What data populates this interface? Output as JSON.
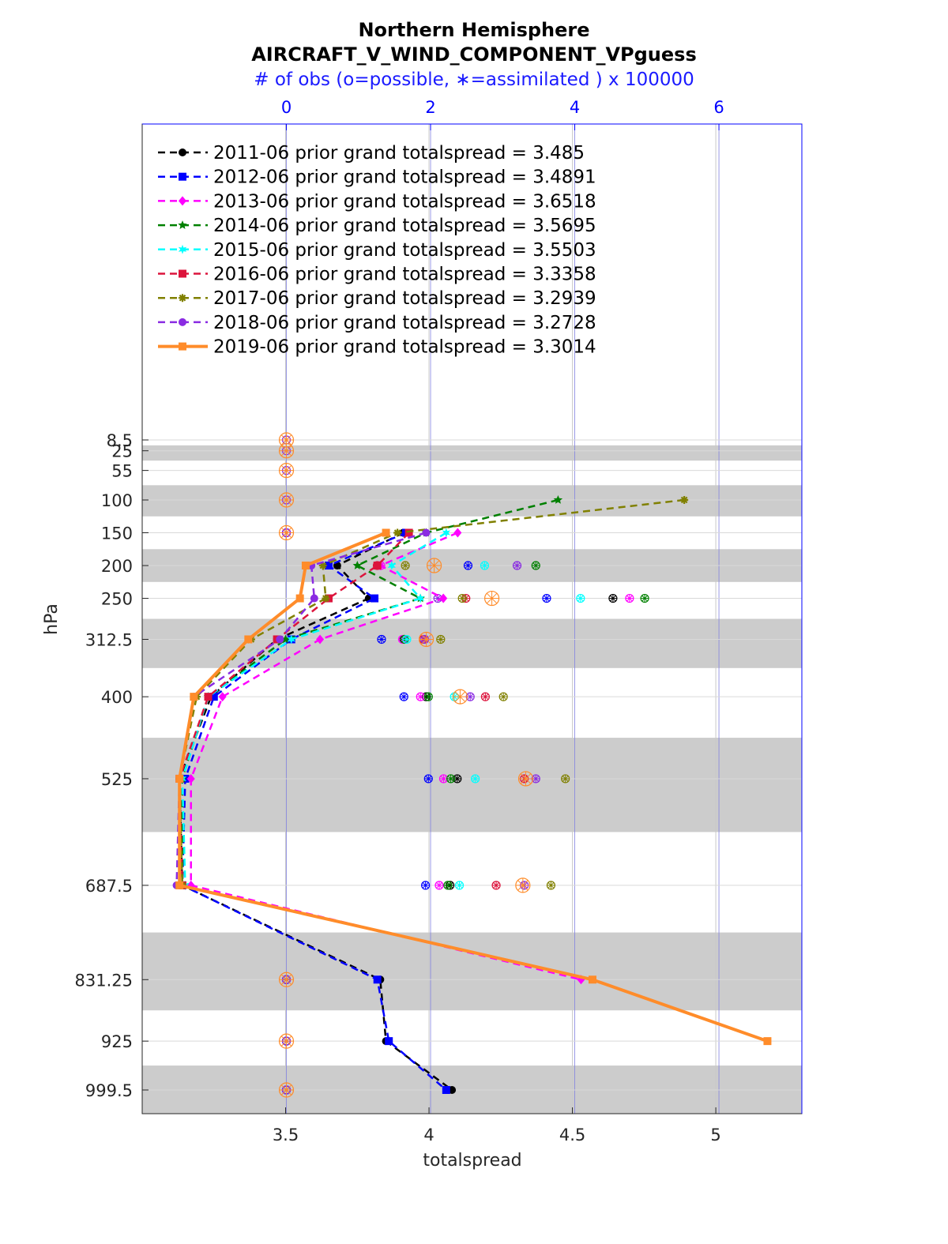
{
  "chart_data": {
    "type": "line",
    "title_line1": "Northern Hemisphere",
    "title_line2": "AIRCRAFT_V_WIND_COMPONENT_VPguess",
    "top_axis_label": "# of obs (o=possible, ∗=assimilated ) x 100000",
    "xlabel": "totalspread",
    "ylabel": "hPa",
    "xlim": [
      3.0,
      5.3
    ],
    "x_ticks": [
      "3.5",
      "4",
      "4.5",
      "5"
    ],
    "x_tick_values": [
      3.5,
      4,
      4.5,
      5
    ],
    "top_xlim": [
      -2,
      7.15
    ],
    "top_ticks": [
      "0",
      "2",
      "4",
      "6"
    ],
    "top_tick_values": [
      0,
      2,
      4,
      6
    ],
    "y_levels": [
      8.5,
      25,
      55,
      100,
      150,
      200,
      250,
      312.5,
      400,
      525,
      687.5,
      831.25,
      925,
      999.5
    ],
    "y_tick_labels": [
      "8.5",
      "25",
      "55",
      "100",
      "150",
      "200",
      "250",
      "312.5",
      "400",
      "525",
      "687.5",
      "831.25",
      "925",
      "999.5"
    ],
    "grid": true,
    "legend_position": "top-left",
    "series": [
      {
        "name": "2011-06 prior grand totalspread = 3.485",
        "color": "#000000",
        "marker": "circle",
        "style": "dashed",
        "x": [
          null,
          null,
          null,
          null,
          3.91,
          3.68,
          3.79,
          3.47,
          3.24,
          3.13,
          3.14,
          3.83,
          3.85,
          4.08
        ],
        "possible": [
          null,
          null,
          null,
          null,
          0.0,
          null,
          4.53,
          1.63,
          1.94,
          2.37,
          2.27,
          0,
          0,
          0
        ],
        "assimilated": [
          null,
          null,
          null,
          null,
          0.0,
          null,
          4.53,
          1.63,
          1.94,
          2.37,
          2.27,
          0,
          0,
          0
        ]
      },
      {
        "name": "2012-06 prior grand totalspread = 3.4891",
        "color": "#0000ff",
        "marker": "square",
        "style": "dashed",
        "x": [
          null,
          null,
          null,
          null,
          3.92,
          3.65,
          3.81,
          3.52,
          3.25,
          3.15,
          3.14,
          3.82,
          3.86,
          4.06
        ],
        "possible": [
          null,
          null,
          null,
          null,
          0.0,
          2.52,
          3.61,
          1.32,
          1.63,
          1.97,
          1.93,
          0,
          0,
          0
        ],
        "assimilated": [
          null,
          null,
          null,
          null,
          0.0,
          2.52,
          3.61,
          1.32,
          1.63,
          1.97,
          1.93,
          0,
          0,
          0
        ]
      },
      {
        "name": "2013-06 prior grand totalspread = 3.6518",
        "color": "#ff00ff",
        "marker": "diamond",
        "style": "dashed",
        "x": [
          null,
          null,
          null,
          null,
          4.1,
          3.83,
          4.05,
          3.62,
          3.28,
          3.17,
          3.17,
          4.53,
          null,
          null
        ],
        "possible": [
          null,
          null,
          null,
          null,
          0.0,
          1.31,
          4.76,
          1.61,
          1.86,
          2.18,
          2.12,
          null,
          null,
          null
        ],
        "assimilated": [
          null,
          null,
          null,
          null,
          0.0,
          1.31,
          4.76,
          1.61,
          1.86,
          2.18,
          2.12,
          null,
          null,
          null
        ]
      },
      {
        "name": "2014-06 prior grand totalspread = 3.5695",
        "color": "#008000",
        "marker": "pentagram",
        "style": "dashed",
        "x": [
          null,
          null,
          null,
          4.45,
          3.99,
          3.75,
          3.97,
          3.5,
          3.23,
          3.14,
          3.14,
          null,
          null,
          null
        ],
        "possible": [
          null,
          null,
          null,
          null,
          null,
          3.46,
          4.97,
          1.64,
          1.97,
          2.28,
          2.24,
          null,
          null,
          null
        ],
        "assimilated": [
          null,
          null,
          null,
          null,
          null,
          3.46,
          4.97,
          1.64,
          1.97,
          2.28,
          2.24,
          null,
          null,
          null
        ]
      },
      {
        "name": "2015-06 prior grand totalspread = 3.5503",
        "color": "#00ffff",
        "marker": "hexagram",
        "style": "dashed",
        "x": [
          null,
          null,
          null,
          null,
          4.06,
          3.87,
          3.97,
          3.52,
          3.23,
          3.14,
          3.15,
          null,
          null,
          null
        ],
        "possible": [
          null,
          null,
          null,
          null,
          null,
          2.75,
          4.08,
          1.67,
          2.33,
          2.62,
          2.4,
          null,
          null,
          null
        ],
        "assimilated": [
          null,
          null,
          null,
          null,
          null,
          2.75,
          4.08,
          1.67,
          2.33,
          2.62,
          2.4,
          null,
          null,
          null
        ]
      },
      {
        "name": "2016-06 prior grand totalspread = 3.3358",
        "color": "#dc143c",
        "marker": "square",
        "style": "dashed",
        "x": [
          null,
          null,
          null,
          null,
          3.93,
          3.82,
          3.65,
          3.47,
          3.23,
          3.13,
          3.14,
          null,
          null,
          null
        ],
        "possible": [
          null,
          null,
          null,
          null,
          null,
          1.26,
          2.49,
          1.9,
          2.76,
          3.3,
          2.91,
          null,
          null,
          null
        ],
        "assimilated": [
          null,
          null,
          null,
          null,
          null,
          1.26,
          2.49,
          1.9,
          2.76,
          3.3,
          2.91,
          null,
          null,
          null
        ]
      },
      {
        "name": "2017-06 prior grand totalspread = 3.2939",
        "color": "#808000",
        "marker": "asterisk",
        "style": "dashed",
        "x": [
          null,
          null,
          null,
          4.89,
          3.89,
          3.63,
          3.64,
          3.38,
          3.19,
          3.13,
          3.14,
          null,
          null,
          null
        ],
        "possible": [
          null,
          null,
          null,
          null,
          null,
          1.65,
          2.44,
          2.14,
          3.01,
          3.87,
          3.67,
          null,
          null,
          null
        ],
        "assimilated": [
          null,
          null,
          null,
          null,
          null,
          1.65,
          2.44,
          2.14,
          3.01,
          3.87,
          3.67,
          null,
          null,
          null
        ]
      },
      {
        "name": "2018-06 prior grand totalspread = 3.2728",
        "color": "#8a2be2",
        "marker": "circle",
        "style": "dashed",
        "x": [
          null,
          null,
          null,
          null,
          3.99,
          3.59,
          3.6,
          3.48,
          3.18,
          3.13,
          3.12,
          null,
          null,
          null
        ],
        "possible": [
          0.0,
          0.0,
          0.0,
          0.0,
          0.0,
          3.2,
          2.1,
          1.92,
          2.55,
          3.46,
          3.3,
          0,
          0,
          0
        ],
        "assimilated": [
          0.0,
          0.0,
          0.0,
          0.0,
          0.0,
          3.2,
          2.1,
          1.92,
          2.55,
          3.46,
          3.3,
          0,
          0,
          0
        ]
      },
      {
        "name": "2019-06 prior grand totalspread = 3.3014",
        "color": "#ff8c2a",
        "marker": "square",
        "style": "solid",
        "x": [
          null,
          null,
          null,
          null,
          3.85,
          3.57,
          3.55,
          3.37,
          3.18,
          3.13,
          3.13,
          4.57,
          5.18,
          null
        ],
        "possible": [
          0.0,
          0.0,
          0.0,
          0.0,
          0.0,
          2.05,
          2.85,
          1.94,
          2.41,
          3.32,
          3.28,
          0,
          0,
          0
        ],
        "assimilated": [
          0.0,
          0.0,
          0.0,
          0.0,
          0.0,
          2.05,
          2.85,
          1.94,
          2.41,
          3.32,
          3.28,
          0,
          0,
          0
        ]
      }
    ]
  }
}
